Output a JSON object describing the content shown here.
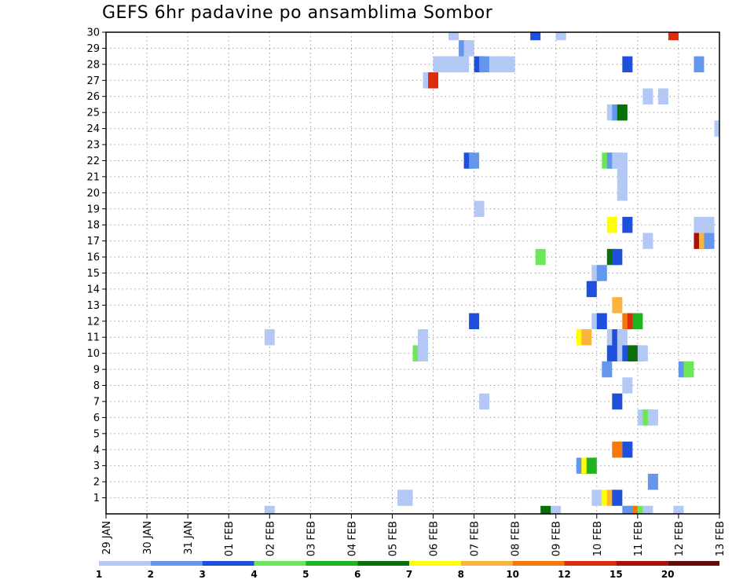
{
  "title": "GEFS 6hr padavine po ansamblima Sombor",
  "chart_data": {
    "type": "heatmap",
    "title": "GEFS 6hr padavine po ansamblima Sombor",
    "xlabel": "",
    "ylabel": "",
    "x_tick_labels": [
      "29 JAN",
      "30 JAN",
      "31 JAN",
      "01 FEB",
      "02 FEB",
      "03 FEB",
      "04 FEB",
      "05 FEB",
      "06 FEB",
      "07 FEB",
      "08 FEB",
      "09 FEB",
      "10 FEB",
      "11 FEB",
      "12 FEB",
      "13 FEB"
    ],
    "y_tick_labels": [
      "1",
      "2",
      "3",
      "4",
      "5",
      "6",
      "7",
      "8",
      "9",
      "10",
      "11",
      "12",
      "13",
      "14",
      "15",
      "16",
      "17",
      "18",
      "19",
      "20",
      "21",
      "22",
      "23",
      "24",
      "25",
      "26",
      "27",
      "28",
      "29",
      "30"
    ],
    "xlim_days": [
      0,
      15
    ],
    "ylim": [
      0,
      30
    ],
    "grid": true,
    "legend_position": "bottom",
    "colorbar": {
      "labels": [
        "1",
        "2",
        "3",
        "4",
        "5",
        "6",
        "7",
        "8",
        "10",
        "12",
        "15",
        "20"
      ],
      "colors": [
        "#b4c8f5",
        "#6496eb",
        "#1e50dc",
        "#6ee65a",
        "#1eb41e",
        "#0a6e0a",
        "#ffff00",
        "#fab43c",
        "#f5780a",
        "#dc2d0f",
        "#aa0f0a",
        "#640a0a"
      ]
    },
    "cells": [
      {
        "x": 13.875,
        "y": 0,
        "c": 0
      },
      {
        "x": 13.125,
        "y": 0,
        "c": 0
      },
      {
        "x": 12.875,
        "y": 0,
        "c": 3
      },
      {
        "x": 12.75,
        "y": 0,
        "c": 8
      },
      {
        "x": 12.625,
        "y": 0,
        "c": 1
      },
      {
        "x": 10.875,
        "y": 0,
        "c": 0
      },
      {
        "x": 10.625,
        "y": 0,
        "c": 5
      },
      {
        "x": 3.875,
        "y": 0,
        "c": 0
      },
      {
        "x": 7.125,
        "y": 1,
        "c": 0
      },
      {
        "x": 7.25,
        "y": 1,
        "c": 0
      },
      {
        "x": 11.875,
        "y": 1,
        "c": 0
      },
      {
        "x": 12.125,
        "y": 1,
        "c": 6
      },
      {
        "x": 12.25,
        "y": 1,
        "c": 7
      },
      {
        "x": 12.375,
        "y": 1,
        "c": 2
      },
      {
        "x": 13.25,
        "y": 2,
        "c": 1
      },
      {
        "x": 11.5,
        "y": 3,
        "c": 1
      },
      {
        "x": 11.625,
        "y": 3,
        "c": 6
      },
      {
        "x": 11.75,
        "y": 3,
        "c": 4
      },
      {
        "x": 12.375,
        "y": 4,
        "c": 8
      },
      {
        "x": 12.625,
        "y": 4,
        "c": 2
      },
      {
        "x": 13,
        "y": 6,
        "c": 0
      },
      {
        "x": 13.125,
        "y": 6,
        "c": 3
      },
      {
        "x": 13.25,
        "y": 6,
        "c": 0
      },
      {
        "x": 9.125,
        "y": 7,
        "c": 0
      },
      {
        "x": 12.375,
        "y": 7,
        "c": 2
      },
      {
        "x": 12.625,
        "y": 8,
        "c": 0
      },
      {
        "x": 12.125,
        "y": 9,
        "c": 1
      },
      {
        "x": 14,
        "y": 9,
        "c": 1
      },
      {
        "x": 14.125,
        "y": 9,
        "c": 3
      },
      {
        "x": 7.5,
        "y": 10,
        "c": 3
      },
      {
        "x": 7.625,
        "y": 10,
        "c": 0
      },
      {
        "x": 12.25,
        "y": 10,
        "c": 2
      },
      {
        "x": 12.375,
        "y": 10,
        "c": 2
      },
      {
        "x": 12.5,
        "y": 10,
        "c": 0
      },
      {
        "x": 12.625,
        "y": 10,
        "c": 2
      },
      {
        "x": 12.75,
        "y": 10,
        "c": 5
      },
      {
        "x": 12.875,
        "y": 10,
        "c": 5
      },
      {
        "x": 13,
        "y": 10,
        "c": 0
      },
      {
        "x": 3.875,
        "y": 11,
        "c": 0
      },
      {
        "x": 7.625,
        "y": 11,
        "c": 0
      },
      {
        "x": 11.5,
        "y": 11,
        "c": 6
      },
      {
        "x": 11.625,
        "y": 11,
        "c": 7
      },
      {
        "x": 12.25,
        "y": 11,
        "c": 0
      },
      {
        "x": 12.375,
        "y": 11,
        "c": 2
      },
      {
        "x": 12.5,
        "y": 11,
        "c": 0
      },
      {
        "x": 8.875,
        "y": 12,
        "c": 2
      },
      {
        "x": 11.875,
        "y": 12,
        "c": 0
      },
      {
        "x": 12,
        "y": 12,
        "c": 2
      },
      {
        "x": 12.625,
        "y": 12,
        "c": 8
      },
      {
        "x": 12.75,
        "y": 12,
        "c": 9
      },
      {
        "x": 12.875,
        "y": 12,
        "c": 4
      },
      {
        "x": 12.375,
        "y": 13,
        "c": 7
      },
      {
        "x": 11.75,
        "y": 14,
        "c": 2
      },
      {
        "x": 11.875,
        "y": 15,
        "c": 0
      },
      {
        "x": 12,
        "y": 15,
        "c": 1
      },
      {
        "x": 10.5,
        "y": 16,
        "c": 3
      },
      {
        "x": 12.25,
        "y": 16,
        "c": 5
      },
      {
        "x": 12.375,
        "y": 16,
        "c": 2
      },
      {
        "x": 13.125,
        "y": 17,
        "c": 0
      },
      {
        "x": 14.375,
        "y": 17,
        "c": 10
      },
      {
        "x": 14.5,
        "y": 17,
        "c": 7
      },
      {
        "x": 14.625,
        "y": 17,
        "c": 1
      },
      {
        "x": 12.25,
        "y": 18,
        "c": 6
      },
      {
        "x": 12.625,
        "y": 18,
        "c": 2
      },
      {
        "x": 14.375,
        "y": 18,
        "c": 0
      },
      {
        "x": 14.5,
        "y": 18,
        "c": 0
      },
      {
        "x": 14.625,
        "y": 18,
        "c": 0
      },
      {
        "x": 9,
        "y": 19,
        "c": 0
      },
      {
        "x": 12.5,
        "y": 20,
        "c": 0
      },
      {
        "x": 12.5,
        "y": 21,
        "c": 0
      },
      {
        "x": 8.75,
        "y": 22,
        "c": 2
      },
      {
        "x": 8.875,
        "y": 22,
        "c": 1
      },
      {
        "x": 12.125,
        "y": 22,
        "c": 3
      },
      {
        "x": 12.25,
        "y": 22,
        "c": 1
      },
      {
        "x": 12.375,
        "y": 22,
        "c": 0
      },
      {
        "x": 12.5,
        "y": 22,
        "c": 0
      },
      {
        "x": 14.875,
        "y": 24,
        "c": 0
      },
      {
        "x": 12.25,
        "y": 25,
        "c": 0
      },
      {
        "x": 12.375,
        "y": 25,
        "c": 1
      },
      {
        "x": 12.5,
        "y": 25,
        "c": 5
      },
      {
        "x": 13.125,
        "y": 26,
        "c": 0
      },
      {
        "x": 13.5,
        "y": 26,
        "c": 0
      },
      {
        "x": 7.75,
        "y": 27,
        "c": 0
      },
      {
        "x": 7.875,
        "y": 27,
        "c": 9
      },
      {
        "x": 8,
        "y": 28,
        "c": 0
      },
      {
        "x": 8.125,
        "y": 28,
        "c": 0
      },
      {
        "x": 8.25,
        "y": 28,
        "c": 0
      },
      {
        "x": 8.375,
        "y": 28,
        "c": 0
      },
      {
        "x": 8.5,
        "y": 28,
        "c": 0
      },
      {
        "x": 8.625,
        "y": 28,
        "c": 0
      },
      {
        "x": 9,
        "y": 28,
        "c": 2
      },
      {
        "x": 9.125,
        "y": 28,
        "c": 1
      },
      {
        "x": 9.375,
        "y": 28,
        "c": 0
      },
      {
        "x": 9.5,
        "y": 28,
        "c": 0
      },
      {
        "x": 9.625,
        "y": 28,
        "c": 0
      },
      {
        "x": 9.75,
        "y": 28,
        "c": 0
      },
      {
        "x": 12.625,
        "y": 28,
        "c": 2
      },
      {
        "x": 14.375,
        "y": 28,
        "c": 1
      },
      {
        "x": 8.625,
        "y": 29,
        "c": 1
      },
      {
        "x": 8.75,
        "y": 29,
        "c": 0
      },
      {
        "x": 8.375,
        "y": 30,
        "c": 0
      },
      {
        "x": 10.375,
        "y": 30,
        "c": 2
      },
      {
        "x": 11,
        "y": 30,
        "c": 0
      },
      {
        "x": 13.75,
        "y": 30,
        "c": 9
      }
    ]
  }
}
